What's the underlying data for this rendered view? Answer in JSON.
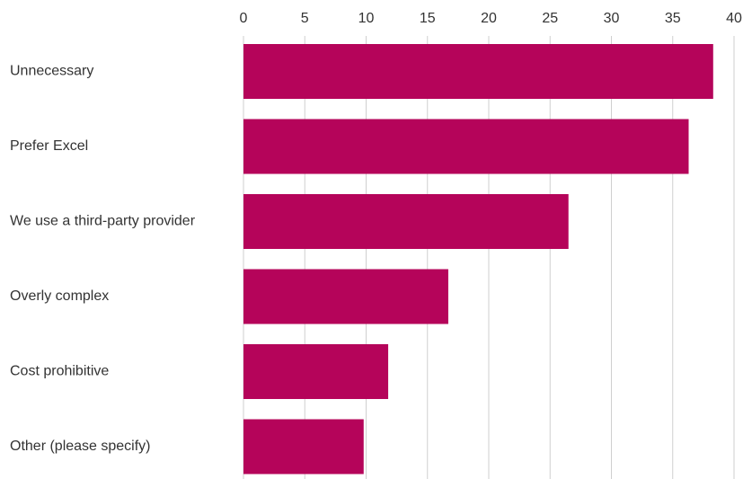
{
  "chart_data": {
    "type": "bar",
    "orientation": "horizontal",
    "categories": [
      "Unnecessary",
      "Prefer Excel",
      "We use a third-party provider",
      "Overly complex",
      "Cost prohibitive",
      "Other (please specify)"
    ],
    "values": [
      38.3,
      36.3,
      26.5,
      16.7,
      11.8,
      9.8
    ],
    "xlim": [
      0,
      40
    ],
    "xticks": [
      0,
      5,
      10,
      15,
      20,
      25,
      30,
      35,
      40
    ],
    "x_axis_position": "top",
    "grid": true,
    "bar_color": "#b5045a",
    "title": "",
    "xlabel": "",
    "ylabel": ""
  }
}
